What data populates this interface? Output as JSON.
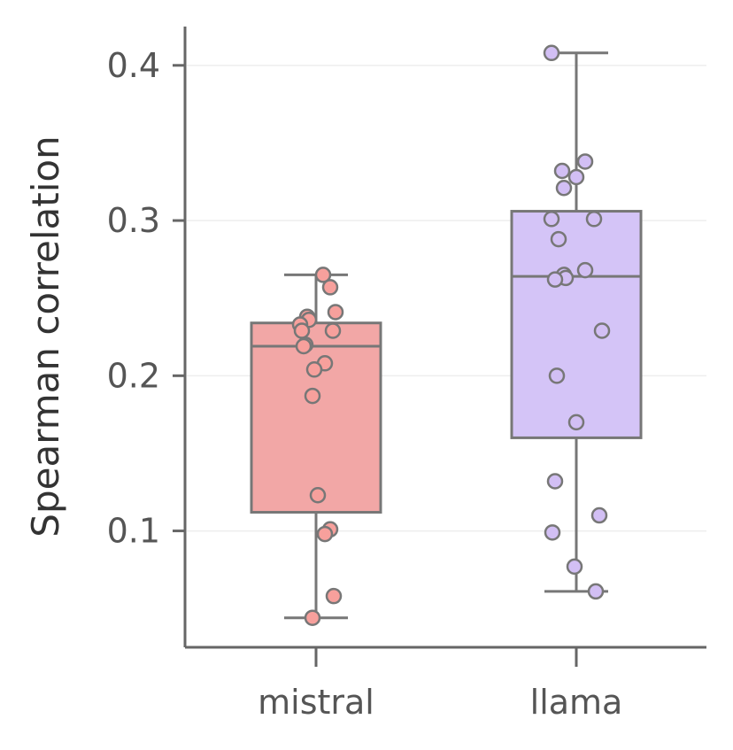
{
  "chart_data": {
    "type": "box",
    "title": "",
    "xlabel": "",
    "ylabel": "Spearman correlation",
    "ylim": [
      0.025,
      0.425
    ],
    "yticks": [
      0.1,
      0.2,
      0.3,
      0.4
    ],
    "ytick_labels": [
      "0.1",
      "0.2",
      "0.3",
      "0.4"
    ],
    "grid": "horizontal",
    "categories": [
      "mistral",
      "llama"
    ],
    "series": [
      {
        "category": "mistral",
        "color": "#f2a7a6",
        "point_color": "#f7a09c",
        "box": {
          "whisker_low": 0.044,
          "q1": 0.112,
          "median": 0.219,
          "q3": 0.234,
          "whisker_high": 0.265
        },
        "points": [
          0.265,
          0.257,
          0.241,
          0.238,
          0.236,
          0.233,
          0.229,
          0.229,
          0.22,
          0.219,
          0.208,
          0.204,
          0.187,
          0.123,
          0.101,
          0.098,
          0.058,
          0.044
        ]
      },
      {
        "category": "llama",
        "color": "#d4c4f7",
        "point_color": "#d2bff4",
        "box": {
          "whisker_low": 0.061,
          "q1": 0.16,
          "median": 0.264,
          "q3": 0.306,
          "whisker_high": 0.408
        },
        "points": [
          0.408,
          0.338,
          0.332,
          0.328,
          0.321,
          0.301,
          0.301,
          0.288,
          0.268,
          0.265,
          0.263,
          0.262,
          0.229,
          0.2,
          0.17,
          0.132,
          0.11,
          0.099,
          0.077,
          0.061
        ]
      }
    ]
  },
  "colors": {
    "axis": "#666666",
    "grid": "#eeeeee",
    "box_edge": "#777777"
  }
}
